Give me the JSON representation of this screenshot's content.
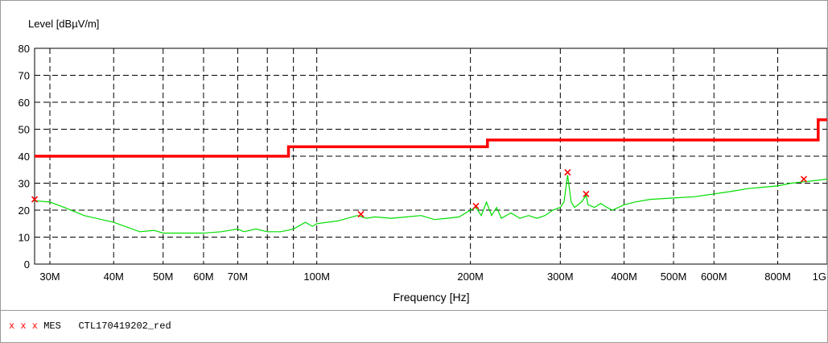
{
  "chart_data": {
    "type": "line",
    "ylabel": "Level [dBµV/m]",
    "xlabel": "Frequency [Hz]",
    "x_scale": "log",
    "xlim_mhz": [
      28,
      1000
    ],
    "ylim": [
      0,
      80
    ],
    "grid": true,
    "yticks": [
      0,
      10,
      20,
      30,
      40,
      50,
      60,
      70,
      80
    ],
    "xticks": [
      {
        "value": 30,
        "label": "30M"
      },
      {
        "value": 40,
        "label": "40M"
      },
      {
        "value": 50,
        "label": "50M"
      },
      {
        "value": 60,
        "label": "60M"
      },
      {
        "value": 70,
        "label": "70M"
      },
      {
        "value": 100,
        "label": "100M"
      },
      {
        "value": 200,
        "label": "200M"
      },
      {
        "value": 300,
        "label": "300M"
      },
      {
        "value": 400,
        "label": "400M"
      },
      {
        "value": 500,
        "label": "500M"
      },
      {
        "value": 600,
        "label": "600M"
      },
      {
        "value": 800,
        "label": "800M"
      },
      {
        "value": 1000,
        "label": "1G"
      }
    ],
    "minor_grid_x": [
      80,
      90
    ],
    "limit_line": {
      "color": "#ff0000",
      "points": [
        [
          28,
          40
        ],
        [
          88,
          40
        ],
        [
          88,
          43.5
        ],
        [
          216,
          43.5
        ],
        [
          216,
          46
        ],
        [
          960,
          46
        ],
        [
          960,
          53.5
        ],
        [
          1000,
          53.5
        ]
      ]
    },
    "spectrum": {
      "color": "#00dd00",
      "points": [
        [
          28,
          23.5
        ],
        [
          30,
          23
        ],
        [
          32,
          21
        ],
        [
          35,
          18
        ],
        [
          40,
          15.5
        ],
        [
          45,
          12
        ],
        [
          48,
          12.5
        ],
        [
          50,
          11.5
        ],
        [
          55,
          11.5
        ],
        [
          60,
          11.5
        ],
        [
          65,
          12
        ],
        [
          70,
          13
        ],
        [
          72,
          12
        ],
        [
          76,
          13
        ],
        [
          80,
          12
        ],
        [
          85,
          12
        ],
        [
          90,
          13
        ],
        [
          95,
          15.5
        ],
        [
          98,
          14
        ],
        [
          100,
          15
        ],
        [
          110,
          16
        ],
        [
          120,
          18
        ],
        [
          125,
          17
        ],
        [
          130,
          17.5
        ],
        [
          140,
          17
        ],
        [
          150,
          17.5
        ],
        [
          160,
          18
        ],
        [
          170,
          16.5
        ],
        [
          180,
          17
        ],
        [
          190,
          17.5
        ],
        [
          200,
          20
        ],
        [
          205,
          21
        ],
        [
          210,
          18
        ],
        [
          215,
          23
        ],
        [
          220,
          18
        ],
        [
          225,
          21
        ],
        [
          230,
          17
        ],
        [
          240,
          19
        ],
        [
          250,
          17
        ],
        [
          260,
          18
        ],
        [
          270,
          17
        ],
        [
          280,
          18
        ],
        [
          290,
          20
        ],
        [
          300,
          21
        ],
        [
          305,
          23
        ],
        [
          310,
          33
        ],
        [
          315,
          23
        ],
        [
          320,
          21
        ],
        [
          330,
          23
        ],
        [
          337,
          25.5
        ],
        [
          340,
          22
        ],
        [
          350,
          21
        ],
        [
          360,
          22.5
        ],
        [
          370,
          21
        ],
        [
          380,
          20
        ],
        [
          390,
          21
        ],
        [
          400,
          22
        ],
        [
          420,
          23
        ],
        [
          450,
          24
        ],
        [
          500,
          24.5
        ],
        [
          550,
          25
        ],
        [
          600,
          26
        ],
        [
          650,
          27
        ],
        [
          700,
          28
        ],
        [
          750,
          28.5
        ],
        [
          800,
          29
        ],
        [
          850,
          30
        ],
        [
          900,
          30.5
        ],
        [
          950,
          31
        ],
        [
          1000,
          31.5
        ]
      ]
    },
    "markers": {
      "color": "#ff0000",
      "points": [
        [
          28,
          24
        ],
        [
          122,
          18.5
        ],
        [
          205,
          21.5
        ],
        [
          310,
          34
        ],
        [
          337,
          26
        ],
        [
          900,
          31.5
        ]
      ]
    }
  },
  "legend": {
    "marks": "x x x",
    "type": "MES",
    "name": "CTL170419202_red"
  }
}
